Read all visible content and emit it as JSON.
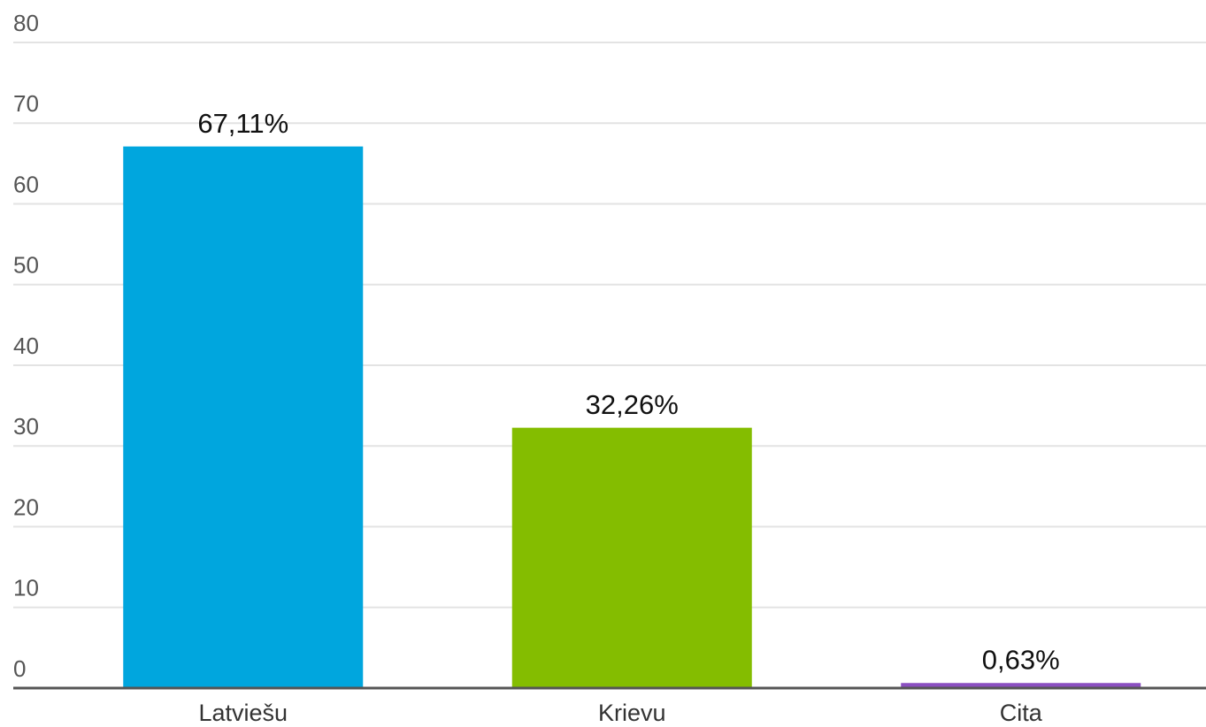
{
  "chart_data": {
    "type": "bar",
    "categories": [
      "Latviešu",
      "Krievu",
      "Cita"
    ],
    "values": [
      67.11,
      32.26,
      0.63
    ],
    "value_labels": [
      "67,11%",
      "32,26%",
      "0,63%"
    ],
    "colors": [
      "#00a6de",
      "#84bd00",
      "#8a4fc0"
    ],
    "ylim": [
      0,
      80
    ],
    "yticks": [
      0,
      10,
      20,
      30,
      40,
      50,
      60,
      70,
      80
    ],
    "grid": true
  }
}
